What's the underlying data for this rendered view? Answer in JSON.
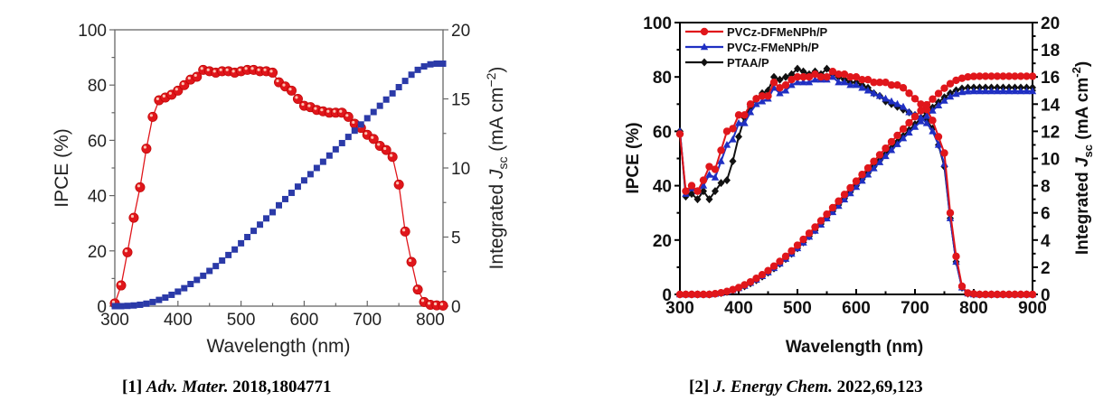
{
  "chart_data": [
    {
      "type": "line",
      "title": "",
      "xlabel": "Wavelength (nm)",
      "ylabel": "IPCE (%)",
      "y2label": "Integrated J_sc (mA cm^-2)",
      "y2label_parts": {
        "prefix": "Integrated ",
        "J": "J",
        "sub": "sc",
        "unit": " (mA cm",
        "sup": "−2",
        "close": ")"
      },
      "xlim": [
        300,
        820
      ],
      "ylim": [
        0,
        100
      ],
      "y2lim": [
        0,
        20
      ],
      "xticks": [
        300,
        400,
        500,
        600,
        700,
        800
      ],
      "yticks": [
        0,
        20,
        40,
        60,
        80,
        100
      ],
      "y2ticks": [
        0,
        5,
        10,
        15,
        20
      ],
      "grid": false,
      "legend": null,
      "series": [
        {
          "name": "IPCE",
          "axis": "left",
          "color": "#e0161b",
          "marker": "sphere",
          "x": [
            300,
            310,
            320,
            330,
            340,
            350,
            360,
            370,
            380,
            390,
            400,
            410,
            420,
            430,
            440,
            450,
            460,
            470,
            480,
            490,
            500,
            510,
            520,
            530,
            540,
            550,
            560,
            570,
            580,
            590,
            600,
            610,
            620,
            630,
            640,
            650,
            660,
            670,
            680,
            690,
            700,
            710,
            720,
            730,
            740,
            750,
            760,
            770,
            780,
            790,
            800,
            810,
            820
          ],
          "y": [
            1,
            7.5,
            19.5,
            32,
            43,
            57,
            68.5,
            74.5,
            75.5,
            76.5,
            78,
            80,
            82,
            83,
            85.5,
            85,
            84.5,
            85,
            85,
            84.5,
            85,
            85.5,
            85.5,
            85,
            85,
            84.5,
            81,
            79.5,
            78,
            75,
            72.5,
            72,
            71,
            70.5,
            70,
            70,
            70,
            68.5,
            66,
            64.5,
            62,
            60.5,
            58,
            56.5,
            54,
            44,
            27,
            16,
            6,
            1.5,
            0.5,
            0.3,
            0.2
          ]
        },
        {
          "name": "Integrated Jsc",
          "axis": "right",
          "color": "#2b3aa8",
          "marker": "square",
          "x": [
            300,
            310,
            320,
            330,
            340,
            350,
            360,
            370,
            380,
            390,
            400,
            410,
            420,
            430,
            440,
            450,
            460,
            470,
            480,
            490,
            500,
            510,
            520,
            530,
            540,
            550,
            560,
            570,
            580,
            590,
            600,
            610,
            620,
            630,
            640,
            650,
            660,
            670,
            680,
            690,
            700,
            710,
            720,
            730,
            740,
            750,
            760,
            770,
            780,
            790,
            800,
            810,
            820
          ],
          "y": [
            0,
            0,
            0.02,
            0.05,
            0.1,
            0.18,
            0.3,
            0.45,
            0.62,
            0.82,
            1.05,
            1.3,
            1.6,
            1.9,
            2.2,
            2.55,
            2.9,
            3.3,
            3.7,
            4.1,
            4.55,
            5.0,
            5.45,
            5.9,
            6.35,
            6.8,
            7.3,
            7.75,
            8.2,
            8.65,
            9.1,
            9.55,
            10.0,
            10.45,
            10.9,
            11.35,
            11.8,
            12.25,
            12.7,
            13.15,
            13.6,
            14.05,
            14.5,
            14.95,
            15.4,
            15.85,
            16.3,
            16.75,
            17.1,
            17.35,
            17.5,
            17.55,
            17.55
          ]
        }
      ]
    },
    {
      "type": "line",
      "title": "",
      "xlabel": "Wavelength (nm)",
      "ylabel": "IPCE (%)",
      "y2label": "Integrated J_sc (mA cm^-2)",
      "y2label_parts": {
        "prefix": "Integrated ",
        "J": "J",
        "sub": "sc",
        "unit": " (mA cm",
        "sup": "-2",
        "close": ")"
      },
      "xlim": [
        300,
        900
      ],
      "ylim": [
        0,
        100
      ],
      "y2lim": [
        0,
        20
      ],
      "xticks": [
        300,
        400,
        500,
        600,
        700,
        800,
        900
      ],
      "yticks": [
        0,
        20,
        40,
        60,
        80,
        100
      ],
      "y2ticks": [
        0,
        2,
        4,
        6,
        8,
        10,
        12,
        14,
        16,
        18,
        20
      ],
      "grid": false,
      "legend": "top-left",
      "series": [
        {
          "name": "PVCz-DFMeNPh/P",
          "color": "#e0161b",
          "marker": "circle",
          "ipce_x": [
            300,
            310,
            320,
            330,
            340,
            350,
            360,
            370,
            380,
            390,
            400,
            410,
            420,
            430,
            440,
            450,
            460,
            470,
            480,
            490,
            500,
            510,
            520,
            530,
            540,
            550,
            560,
            570,
            580,
            590,
            600,
            610,
            620,
            630,
            640,
            650,
            660,
            670,
            680,
            690,
            700,
            710,
            720,
            730,
            740,
            750,
            760,
            770,
            780,
            790,
            800,
            810,
            820,
            830,
            840,
            850,
            860,
            870,
            880,
            890,
            900
          ],
          "ipce_y": [
            59,
            38,
            40,
            38,
            42,
            47,
            46,
            53,
            60,
            61,
            66,
            66,
            70,
            72,
            73,
            73,
            78,
            76,
            77,
            79,
            80,
            80,
            80,
            81,
            80,
            80,
            82,
            81,
            81,
            80,
            80,
            79,
            79,
            78,
            78,
            78,
            77,
            77,
            76,
            74,
            72,
            70,
            68,
            64,
            58,
            52,
            30,
            14,
            3,
            0.5,
            0.2,
            0,
            0,
            0,
            0,
            0,
            0,
            0,
            0,
            0,
            0
          ],
          "jsc_x": [
            300,
            310,
            320,
            330,
            340,
            350,
            360,
            370,
            380,
            390,
            400,
            410,
            420,
            430,
            440,
            450,
            460,
            470,
            480,
            490,
            500,
            510,
            520,
            530,
            540,
            550,
            560,
            570,
            580,
            590,
            600,
            610,
            620,
            630,
            640,
            650,
            660,
            670,
            680,
            690,
            700,
            710,
            720,
            730,
            740,
            750,
            760,
            770,
            780,
            790,
            800,
            810,
            820,
            830,
            840,
            850,
            860,
            870,
            880,
            890,
            900
          ],
          "jsc_y": [
            0,
            0,
            0,
            0,
            0,
            0,
            0.05,
            0.12,
            0.22,
            0.35,
            0.5,
            0.7,
            0.92,
            1.18,
            1.45,
            1.75,
            2.08,
            2.43,
            2.8,
            3.2,
            3.62,
            4.05,
            4.5,
            4.95,
            5.42,
            5.9,
            6.38,
            6.86,
            7.35,
            7.84,
            8.33,
            8.82,
            9.3,
            9.79,
            10.27,
            10.75,
            11.23,
            11.7,
            12.17,
            12.63,
            13.08,
            13.52,
            13.95,
            14.37,
            14.78,
            15.17,
            15.5,
            15.75,
            15.9,
            16.0,
            16.04,
            16.05,
            16.05,
            16.05,
            16.05,
            16.05,
            16.05,
            16.05,
            16.05,
            16.05,
            16.05
          ]
        },
        {
          "name": "PVCz-FMeNPh/P",
          "color": "#1f2fc2",
          "marker": "triangle",
          "ipce_x": [
            300,
            310,
            320,
            330,
            340,
            350,
            360,
            370,
            380,
            390,
            400,
            410,
            420,
            430,
            440,
            450,
            460,
            470,
            480,
            490,
            500,
            510,
            520,
            530,
            540,
            550,
            560,
            570,
            580,
            590,
            600,
            610,
            620,
            630,
            640,
            650,
            660,
            670,
            680,
            690,
            700,
            710,
            720,
            730,
            740,
            750,
            760,
            770,
            780,
            790,
            800,
            810,
            820,
            830,
            840,
            850,
            860,
            870,
            880,
            890,
            900
          ],
          "ipce_y": [
            60,
            37,
            39,
            38,
            40,
            44,
            43,
            49,
            55,
            57,
            63,
            63,
            67,
            70,
            71,
            72,
            76,
            74,
            75,
            77,
            78,
            78,
            78,
            79,
            79,
            79,
            80,
            78,
            78,
            77,
            77,
            76,
            75,
            74,
            73,
            72,
            71,
            70,
            69,
            67,
            66,
            65,
            63,
            60,
            55,
            48,
            28,
            12,
            2.5,
            0.3,
            0,
            0,
            0,
            0,
            0,
            0,
            0,
            0,
            0,
            0,
            0
          ],
          "jsc_x": [
            300,
            310,
            320,
            330,
            340,
            350,
            360,
            370,
            380,
            390,
            400,
            410,
            420,
            430,
            440,
            450,
            460,
            470,
            480,
            490,
            500,
            510,
            520,
            530,
            540,
            550,
            560,
            570,
            580,
            590,
            600,
            610,
            620,
            630,
            640,
            650,
            660,
            670,
            680,
            690,
            700,
            710,
            720,
            730,
            740,
            750,
            760,
            770,
            780,
            790,
            800,
            810,
            820,
            830,
            840,
            850,
            860,
            870,
            880,
            890,
            900
          ],
          "jsc_y": [
            0,
            0,
            0,
            0,
            0,
            0,
            0.04,
            0.1,
            0.19,
            0.31,
            0.45,
            0.63,
            0.84,
            1.08,
            1.34,
            1.62,
            1.93,
            2.26,
            2.61,
            2.99,
            3.39,
            3.81,
            4.24,
            4.68,
            5.13,
            5.59,
            6.05,
            6.51,
            6.98,
            7.44,
            7.9,
            8.36,
            8.82,
            9.27,
            9.72,
            10.17,
            10.61,
            11.05,
            11.48,
            11.9,
            12.32,
            12.73,
            13.13,
            13.52,
            13.9,
            14.25,
            14.55,
            14.75,
            14.88,
            14.93,
            14.95,
            14.95,
            14.95,
            14.95,
            14.95,
            14.95,
            14.95,
            14.95,
            14.95,
            14.95,
            14.95
          ]
        },
        {
          "name": "PTAA/P",
          "color": "#111111",
          "marker": "diamond",
          "ipce_x": [
            300,
            310,
            320,
            330,
            340,
            350,
            360,
            370,
            380,
            390,
            400,
            410,
            420,
            430,
            440,
            450,
            460,
            470,
            480,
            490,
            500,
            510,
            520,
            530,
            540,
            550,
            560,
            570,
            580,
            590,
            600,
            610,
            620,
            630,
            640,
            650,
            660,
            670,
            680,
            690,
            700,
            710,
            720,
            730,
            740,
            750,
            760,
            770,
            780,
            790,
            800,
            810,
            820,
            830,
            840,
            850,
            860,
            870,
            880,
            890,
            900
          ],
          "ipce_y": [
            60,
            36,
            37,
            35,
            38,
            35,
            38,
            41,
            42,
            49,
            58,
            65,
            69,
            72,
            74,
            75,
            80,
            79,
            80,
            81,
            83,
            82,
            81,
            82,
            81,
            83,
            81,
            80,
            79,
            78,
            78,
            77,
            76,
            74,
            73,
            71,
            70,
            69,
            68,
            67,
            66,
            65,
            64,
            61,
            55,
            47,
            28,
            12,
            2.5,
            0.3,
            0,
            0,
            0,
            0,
            0,
            0,
            0,
            0,
            0,
            0,
            0
          ],
          "jsc_x": [
            300,
            310,
            320,
            330,
            340,
            350,
            360,
            370,
            380,
            390,
            400,
            410,
            420,
            430,
            440,
            450,
            460,
            470,
            480,
            490,
            500,
            510,
            520,
            530,
            540,
            550,
            560,
            570,
            580,
            590,
            600,
            610,
            620,
            630,
            640,
            650,
            660,
            670,
            680,
            690,
            700,
            710,
            720,
            730,
            740,
            750,
            760,
            770,
            780,
            790,
            800,
            810,
            820,
            830,
            840,
            850,
            860,
            870,
            880,
            890,
            900
          ],
          "jsc_y": [
            0,
            0,
            0,
            0,
            0,
            0,
            0.04,
            0.1,
            0.18,
            0.29,
            0.42,
            0.6,
            0.81,
            1.05,
            1.31,
            1.6,
            1.91,
            2.25,
            2.61,
            2.99,
            3.4,
            3.83,
            4.27,
            4.72,
            5.18,
            5.65,
            6.12,
            6.59,
            7.06,
            7.53,
            8.0,
            8.47,
            8.94,
            9.4,
            9.86,
            10.32,
            10.77,
            11.22,
            11.66,
            12.09,
            12.52,
            12.94,
            13.35,
            13.75,
            14.14,
            14.5,
            14.8,
            15.02,
            15.15,
            15.21,
            15.22,
            15.22,
            15.22,
            15.22,
            15.22,
            15.22,
            15.22,
            15.22,
            15.22,
            15.22,
            15.22
          ]
        }
      ]
    }
  ],
  "captions": [
    {
      "ref": "[1]",
      "journal": "Adv. Mater.",
      "year": "2018,",
      "article": "1804771"
    },
    {
      "ref": "[2]",
      "journal": "J. Energy Chem.",
      "year": "2022,",
      "article": "69,123"
    }
  ]
}
